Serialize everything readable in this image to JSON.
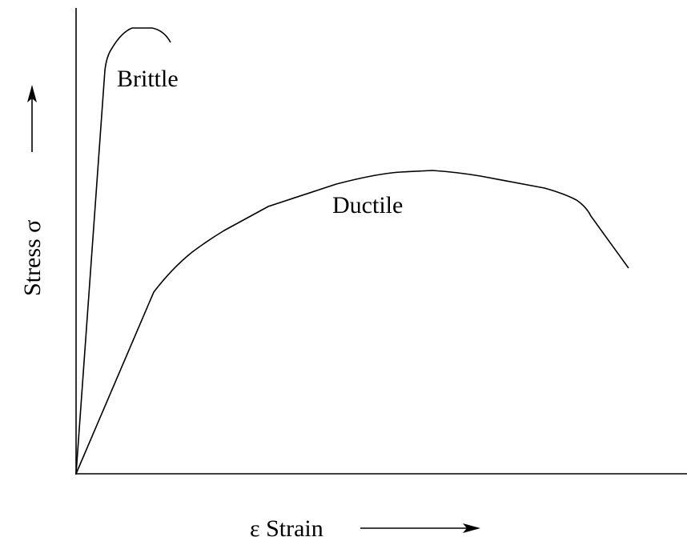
{
  "curves": {
    "brittle": "Brittle",
    "ductile": "Ductile"
  },
  "axes": {
    "y_label": "Stress σ",
    "x_label": "ε Strain"
  }
}
